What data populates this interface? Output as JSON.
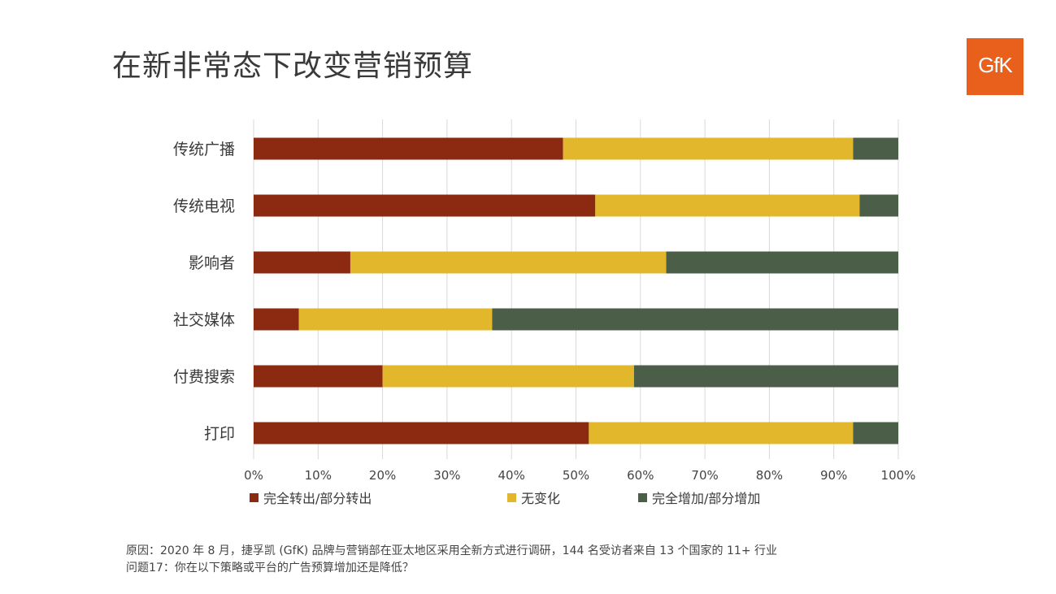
{
  "title": "在新非常态下改变营销预算",
  "logo_text": "GfK",
  "chart_data": {
    "type": "bar",
    "orientation": "horizontal",
    "stacked": "percent",
    "categories": [
      "传统广播",
      "传统电视",
      "影响者",
      "社交媒体",
      "付费搜索",
      "打印"
    ],
    "series": [
      {
        "name": "完全转出/部分转出",
        "color": "#8b2a10",
        "values": [
          48,
          53,
          15,
          7,
          20,
          52
        ]
      },
      {
        "name": "无变化",
        "color": "#e3b72b",
        "values": [
          45,
          41,
          49,
          30,
          39,
          41
        ]
      },
      {
        "name": "完全增加/部分增加",
        "color": "#4a5e48",
        "values": [
          7,
          6,
          36,
          63,
          41,
          7
        ]
      }
    ],
    "xlim": [
      0,
      100
    ],
    "x_ticks": [
      "0%",
      "10%",
      "20%",
      "30%",
      "40%",
      "50%",
      "60%",
      "70%",
      "80%",
      "90%",
      "100%"
    ],
    "grid": "vertical",
    "legend": "bottom"
  },
  "footer": {
    "line1": "原因：2020 年 8 月，捷孚凯 (GfK) 品牌与营销部在亚太地区采用全新方式进行调研，144 名受访者来自 13 个国家的 11+ 行业",
    "line2": "问题17：你在以下策略或平台的广告预算增加还是降低？"
  }
}
